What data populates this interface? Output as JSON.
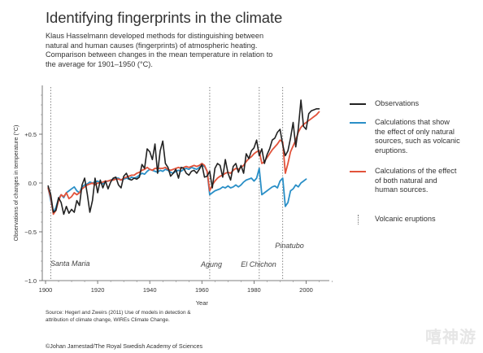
{
  "header": {
    "title": "Identifying fingerprints in the climate",
    "subtitle_lines": [
      "Klaus Hasselmann developed methods for distinguishing between",
      "natural and human causes (fingerprints) of atmospheric heating.",
      "Comparison between changes in the mean temperature in relation to",
      "the average for 1901–1950 (°C)."
    ]
  },
  "legend": {
    "observations": {
      "lines": [
        "Observations"
      ],
      "color": "#222222"
    },
    "natural": {
      "lines": [
        "Calculations that show",
        "the effect of only natural",
        "sources, such as volcanic",
        "eruptions."
      ],
      "color": "#2a8fc7"
    },
    "combined": {
      "lines": [
        "Calculations of the effect",
        "of both natural and",
        "human sources."
      ],
      "color": "#e2533b"
    },
    "volcanic": {
      "lines": [
        "Volcanic eruptions"
      ],
      "color": "#777777"
    }
  },
  "footer": {
    "source_lines": [
      "Source: Hegerl and Zweirs (2011) Use of models in detection &",
      "attribution of climate change, WIREs Climate Change."
    ],
    "credit": "©Johan Jarnestad/The Royal Swedish Academy of Sciences"
  },
  "watermark": "嘻神游",
  "chart_data": {
    "type": "line",
    "title": "Identifying fingerprints in the climate",
    "xlabel": "Year",
    "ylabel": "Observations of changes in temperature (°C)",
    "xlim": [
      1900,
      2010
    ],
    "ylim": [
      -1.0,
      0.95
    ],
    "x_ticks": [
      1900,
      1920,
      1940,
      1960,
      1980,
      2000
    ],
    "y_ticks": [
      {
        "value": 0.5,
        "label": "+0.5"
      },
      {
        "value": 0.0,
        "label": "0.0"
      },
      {
        "value": -0.5,
        "label": "−0.5"
      },
      {
        "value": -1.0,
        "label": "−1.0"
      }
    ],
    "series": [
      {
        "name": "Observations",
        "color": "#222222",
        "x": [
          1901,
          1902,
          1903,
          1904,
          1905,
          1906,
          1907,
          1908,
          1909,
          1910,
          1911,
          1912,
          1913,
          1914,
          1915,
          1916,
          1917,
          1918,
          1919,
          1920,
          1921,
          1922,
          1923,
          1924,
          1925,
          1926,
          1927,
          1928,
          1929,
          1930,
          1931,
          1932,
          1933,
          1934,
          1935,
          1936,
          1937,
          1938,
          1939,
          1940,
          1941,
          1942,
          1943,
          1944,
          1945,
          1946,
          1947,
          1948,
          1949,
          1950,
          1951,
          1952,
          1953,
          1954,
          1955,
          1956,
          1957,
          1958,
          1959,
          1960,
          1961,
          1962,
          1963,
          1964,
          1965,
          1966,
          1967,
          1968,
          1969,
          1970,
          1971,
          1972,
          1973,
          1974,
          1975,
          1976,
          1977,
          1978,
          1979,
          1980,
          1981,
          1982,
          1983,
          1984,
          1985,
          1986,
          1987,
          1988,
          1989,
          1990,
          1991,
          1992,
          1993,
          1994,
          1995,
          1996,
          1997,
          1998,
          1999,
          2000,
          2001,
          2002,
          2003,
          2004,
          2005
        ],
        "y": [
          -0.03,
          -0.12,
          -0.3,
          -0.28,
          -0.15,
          -0.2,
          -0.32,
          -0.24,
          -0.31,
          -0.27,
          -0.3,
          -0.18,
          -0.23,
          -0.02,
          0.05,
          -0.11,
          -0.3,
          -0.18,
          0.05,
          -0.1,
          0.03,
          -0.05,
          0.02,
          -0.06,
          0.01,
          0.05,
          0.06,
          -0.02,
          -0.05,
          0.07,
          0.1,
          0.04,
          0.03,
          0.05,
          0.04,
          0.06,
          0.19,
          0.15,
          0.35,
          0.32,
          0.24,
          0.4,
          0.1,
          0.33,
          0.43,
          0.2,
          0.16,
          0.07,
          0.1,
          0.14,
          0.05,
          0.16,
          0.15,
          0.1,
          0.08,
          0.12,
          0.13,
          0.1,
          0.14,
          0.19,
          0.06,
          0.07,
          0.12,
          -0.05,
          0.15,
          0.2,
          0.18,
          0.06,
          0.24,
          0.1,
          0.03,
          0.17,
          0.2,
          0.11,
          0.18,
          0.1,
          0.3,
          0.25,
          0.33,
          0.36,
          0.44,
          0.28,
          0.35,
          0.2,
          0.29,
          0.35,
          0.44,
          0.46,
          0.52,
          0.55,
          0.39,
          0.28,
          0.33,
          0.46,
          0.62,
          0.37,
          0.56,
          0.85,
          0.58,
          0.55,
          0.71,
          0.74,
          0.75,
          0.76,
          0.76
        ]
      },
      {
        "name": "Calculations that show the effect of only natural sources, such as volcanic eruptions.",
        "color": "#2a8fc7",
        "x": [
          1901,
          1902,
          1903,
          1904,
          1905,
          1906,
          1907,
          1908,
          1909,
          1910,
          1911,
          1912,
          1913,
          1914,
          1915,
          1916,
          1917,
          1918,
          1919,
          1920,
          1921,
          1922,
          1923,
          1924,
          1925,
          1926,
          1927,
          1928,
          1929,
          1930,
          1931,
          1932,
          1933,
          1934,
          1935,
          1936,
          1937,
          1938,
          1939,
          1940,
          1941,
          1942,
          1943,
          1944,
          1945,
          1946,
          1947,
          1948,
          1949,
          1950,
          1951,
          1952,
          1953,
          1954,
          1955,
          1956,
          1957,
          1958,
          1959,
          1960,
          1961,
          1962,
          1963,
          1964,
          1965,
          1966,
          1967,
          1968,
          1969,
          1970,
          1971,
          1972,
          1973,
          1974,
          1975,
          1976,
          1977,
          1978,
          1979,
          1980,
          1981,
          1982,
          1983,
          1984,
          1985,
          1986,
          1987,
          1988,
          1989,
          1990,
          1991,
          1992,
          1993,
          1994,
          1995,
          1996,
          1997,
          1998,
          1999,
          2000
        ],
        "y": [
          -0.05,
          -0.18,
          -0.3,
          -0.25,
          -0.16,
          -0.12,
          -0.15,
          -0.1,
          -0.08,
          -0.06,
          -0.04,
          -0.08,
          -0.1,
          -0.04,
          -0.02,
          -0.01,
          0.01,
          0.0,
          0.01,
          0.02,
          0.0,
          -0.01,
          0.01,
          0.02,
          0.03,
          0.04,
          0.05,
          0.05,
          0.03,
          0.04,
          0.05,
          0.04,
          0.06,
          0.05,
          0.06,
          0.08,
          0.1,
          0.09,
          0.12,
          0.14,
          0.13,
          0.12,
          0.11,
          0.13,
          0.12,
          0.14,
          0.13,
          0.11,
          0.1,
          0.12,
          0.13,
          0.12,
          0.14,
          0.15,
          0.14,
          0.16,
          0.15,
          0.14,
          0.16,
          0.18,
          0.17,
          0.12,
          -0.12,
          -0.1,
          -0.08,
          -0.07,
          -0.06,
          -0.04,
          -0.05,
          -0.03,
          -0.05,
          -0.04,
          -0.02,
          -0.04,
          -0.02,
          0.01,
          0.03,
          0.04,
          0.05,
          0.02,
          0.05,
          0.15,
          -0.12,
          -0.1,
          -0.08,
          -0.06,
          -0.04,
          -0.03,
          -0.05,
          0.02,
          0.05,
          -0.24,
          -0.2,
          -0.08,
          -0.06,
          -0.02,
          -0.04,
          0.0,
          0.02,
          0.04
        ]
      },
      {
        "name": "Calculations of the effect of both natural and human sources.",
        "color": "#e2533b",
        "x": [
          1901,
          1902,
          1903,
          1904,
          1905,
          1906,
          1907,
          1908,
          1909,
          1910,
          1911,
          1912,
          1913,
          1914,
          1915,
          1916,
          1917,
          1918,
          1919,
          1920,
          1921,
          1922,
          1923,
          1924,
          1925,
          1926,
          1927,
          1928,
          1929,
          1930,
          1931,
          1932,
          1933,
          1934,
          1935,
          1936,
          1937,
          1938,
          1939,
          1940,
          1941,
          1942,
          1943,
          1944,
          1945,
          1946,
          1947,
          1948,
          1949,
          1950,
          1951,
          1952,
          1953,
          1954,
          1955,
          1956,
          1957,
          1958,
          1959,
          1960,
          1961,
          1962,
          1963,
          1964,
          1965,
          1966,
          1967,
          1968,
          1969,
          1970,
          1971,
          1972,
          1973,
          1974,
          1975,
          1976,
          1977,
          1978,
          1979,
          1980,
          1981,
          1982,
          1983,
          1984,
          1985,
          1986,
          1987,
          1988,
          1989,
          1990,
          1991,
          1992,
          1993,
          1994,
          1995,
          1996,
          1997,
          1998,
          1999,
          2000,
          2001,
          2002,
          2003,
          2004,
          2005
        ],
        "y": [
          -0.05,
          -0.15,
          -0.32,
          -0.28,
          -0.18,
          -0.12,
          -0.14,
          -0.1,
          -0.16,
          -0.14,
          -0.1,
          -0.12,
          -0.1,
          -0.06,
          -0.04,
          -0.02,
          -0.01,
          0.0,
          -0.02,
          0.0,
          0.0,
          0.01,
          0.02,
          0.02,
          0.03,
          0.03,
          0.04,
          0.04,
          0.03,
          0.05,
          0.06,
          0.07,
          0.08,
          0.08,
          0.1,
          0.11,
          0.13,
          0.14,
          0.16,
          0.14,
          0.13,
          0.15,
          0.15,
          0.15,
          0.15,
          0.16,
          0.14,
          0.13,
          0.14,
          0.15,
          0.16,
          0.15,
          0.16,
          0.17,
          0.16,
          0.17,
          0.18,
          0.17,
          0.18,
          0.2,
          0.18,
          0.12,
          -0.08,
          -0.02,
          0.02,
          0.05,
          0.07,
          0.08,
          0.1,
          0.11,
          0.1,
          0.13,
          0.15,
          0.14,
          0.16,
          0.18,
          0.22,
          0.25,
          0.27,
          0.3,
          0.32,
          0.33,
          0.2,
          0.22,
          0.26,
          0.3,
          0.34,
          0.37,
          0.4,
          0.44,
          0.42,
          0.1,
          0.2,
          0.32,
          0.38,
          0.44,
          0.52,
          0.57,
          0.6,
          0.62,
          0.64,
          0.66,
          0.68,
          0.7,
          0.73
        ]
      }
    ],
    "volcanic_eruptions": [
      {
        "year": 1902,
        "label": "Santa Maria"
      },
      {
        "year": 1963,
        "label": "Agung"
      },
      {
        "year": 1982,
        "label": "El Chichon"
      },
      {
        "year": 1991,
        "label": "Pinatubo"
      }
    ],
    "grid": false,
    "legend_position": "right"
  }
}
